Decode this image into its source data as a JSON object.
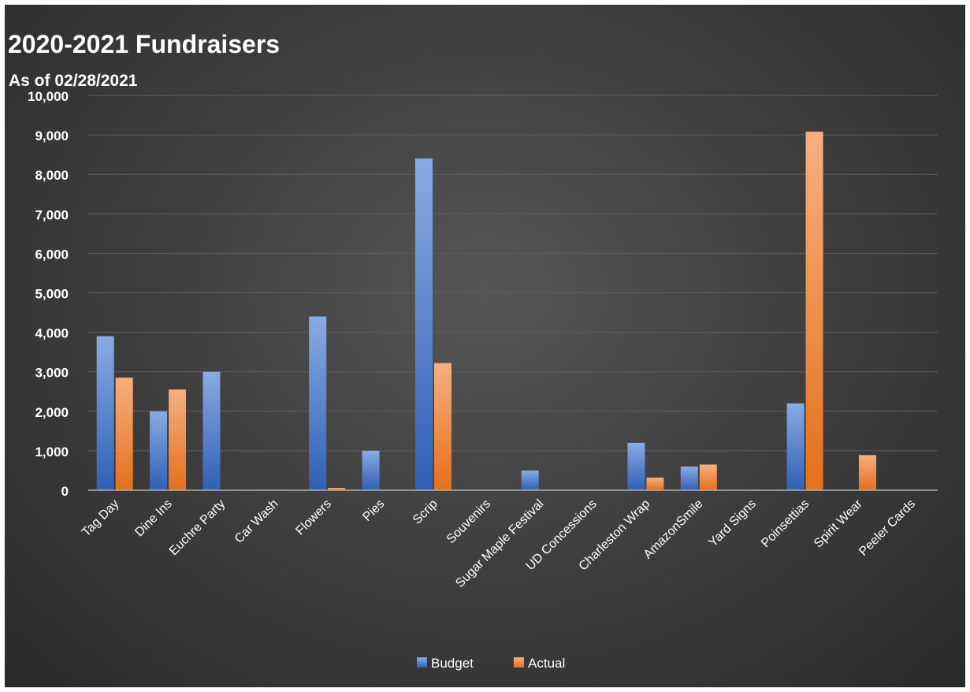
{
  "chart_data": {
    "type": "bar",
    "title": "2020-2021 Fundraisers",
    "subtitle": "As of 02/28/2021",
    "xlabel": "",
    "ylabel": "",
    "ylim": [
      0,
      10000
    ],
    "y_ticks": [
      {
        "value": 0,
        "label": "0"
      },
      {
        "value": 1000,
        "label": "1,000"
      },
      {
        "value": 2000,
        "label": "2,000"
      },
      {
        "value": 3000,
        "label": "3,000"
      },
      {
        "value": 4000,
        "label": "4,000"
      },
      {
        "value": 5000,
        "label": "5,000"
      },
      {
        "value": 6000,
        "label": "6,000"
      },
      {
        "value": 7000,
        "label": "7,000"
      },
      {
        "value": 8000,
        "label": "8,000"
      },
      {
        "value": 9000,
        "label": "9,000"
      },
      {
        "value": 10000,
        "label": "10,000"
      }
    ],
    "grid": true,
    "legend": "bottom",
    "categories": [
      "Tag Day",
      "Dine Ins",
      "Euchre Party",
      "Car Wash",
      "Flowers",
      "Pies",
      "Scrip",
      "Souvenirs",
      "Sugar Maple Festival",
      "UD Concessions",
      "Charleston Wrap",
      "AmazonSmile",
      "Yard Signs",
      "Poinsettias",
      "Spirit Wear",
      "Peeler Cards"
    ],
    "series": [
      {
        "name": "Budget",
        "color": "#4472c4",
        "values": [
          3900,
          2000,
          3000,
          0,
          4400,
          1000,
          8400,
          0,
          500,
          0,
          1200,
          600,
          0,
          2200,
          0,
          0
        ]
      },
      {
        "name": "Actual",
        "color": "#ed7d31",
        "values": [
          2850,
          2550,
          0,
          0,
          60,
          0,
          3220,
          0,
          0,
          0,
          320,
          650,
          0,
          9080,
          890,
          0
        ]
      }
    ]
  }
}
